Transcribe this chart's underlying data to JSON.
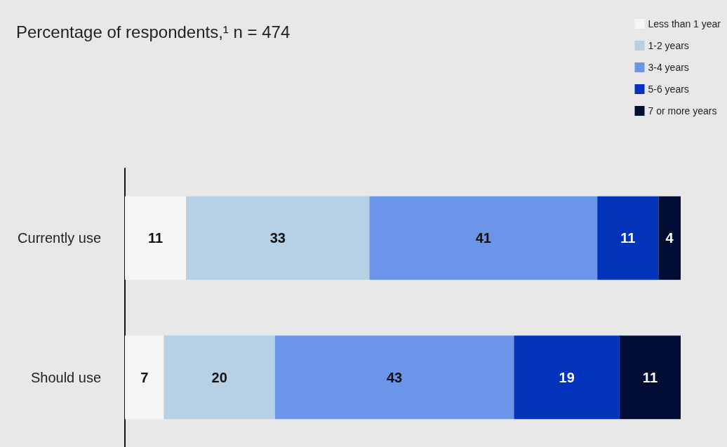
{
  "chart_data": {
    "type": "bar",
    "orientation": "horizontal",
    "stacked": true,
    "title": "Percentage of respondents,¹ n = 474",
    "categories": [
      "Currently use",
      "Should use"
    ],
    "series": [
      {
        "name": "Less than 1 year",
        "color": "#f6f6f6",
        "values": [
          11,
          7
        ]
      },
      {
        "name": "1-2 years",
        "color": "#b6d0e6",
        "values": [
          33,
          20
        ]
      },
      {
        "name": "3-4 years",
        "color": "#6b95e8",
        "values": [
          41,
          43
        ]
      },
      {
        "name": "5-6 years",
        "color": "#0233bb",
        "values": [
          11,
          19
        ]
      },
      {
        "name": "7 or more years",
        "color": "#010d35",
        "values": [
          4,
          11
        ]
      }
    ],
    "data_labels": true,
    "legend": "top right",
    "tick_labels": "y",
    "grid": false
  }
}
